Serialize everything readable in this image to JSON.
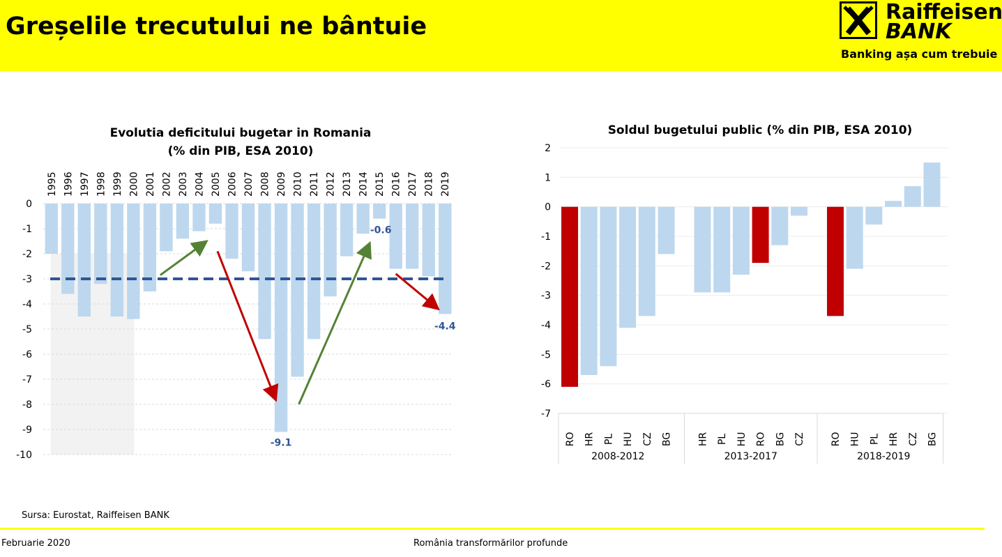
{
  "header": {
    "title": "Greșelile trecutului ne bântuie",
    "logo_line1": "Raiffeisen",
    "logo_line2": "BANK",
    "slogan": "Banking așa cum trebuie"
  },
  "colors": {
    "header_bg": "#ffff00",
    "bar_light": "#bdd7ee",
    "bar_romania": "#c00000",
    "threshold_line": "#2f5597",
    "arrow_up": "#548235",
    "arrow_down": "#c00000",
    "shade": "#f2f2f2"
  },
  "source": "Sursa: Eurostat, Raiffeisen BANK",
  "footer": {
    "left": "Februarie 2020",
    "center": "România transformărilor profunde"
  },
  "chart_data": [
    {
      "type": "bar",
      "title": "Evolutia deficitului bugetar in Romania",
      "subtitle": "(% din PIB, ESA 2010)",
      "categories": [
        "1995",
        "1996",
        "1997",
        "1998",
        "1999",
        "2000",
        "2001",
        "2002",
        "2003",
        "2004",
        "2005",
        "2006",
        "2007",
        "2008",
        "2009",
        "2010",
        "2011",
        "2012",
        "2013",
        "2014",
        "2015",
        "2016",
        "2017",
        "2018",
        "2019"
      ],
      "values": [
        -2.0,
        -3.6,
        -4.5,
        -3.2,
        -4.5,
        -4.6,
        -3.5,
        -1.9,
        -1.4,
        -1.1,
        -0.8,
        -2.2,
        -2.7,
        -5.4,
        -9.1,
        -6.9,
        -5.4,
        -3.7,
        -2.1,
        -1.2,
        -0.6,
        -2.6,
        -2.6,
        -2.9,
        -4.4
      ],
      "ylim": [
        -10,
        0
      ],
      "yticks": [
        0,
        -1,
        -2,
        -3,
        -4,
        -5,
        -6,
        -7,
        -8,
        -9,
        -10
      ],
      "threshold": -3,
      "shaded_years": [
        "1995",
        "2000"
      ],
      "data_labels": [
        {
          "category": "2009",
          "text": "-9.1"
        },
        {
          "category": "2015",
          "text": "-0.6"
        },
        {
          "category": "2019",
          "text": "-4.4"
        }
      ],
      "grid": true
    },
    {
      "type": "bar",
      "title": "Soldul bugetului public (% din PIB, ESA 2010)",
      "ylim": [
        -7,
        2
      ],
      "yticks": [
        2,
        1,
        0,
        -1,
        -2,
        -3,
        -4,
        -5,
        -6,
        -7
      ],
      "grid": true,
      "groups": [
        {
          "label": "2008-2012",
          "categories": [
            "RO",
            "HR",
            "PL",
            "HU",
            "CZ",
            "BG"
          ],
          "values": [
            -6.1,
            -5.7,
            -5.4,
            -4.1,
            -3.7,
            -1.6
          ]
        },
        {
          "label": "2013-2017",
          "categories": [
            "HR",
            "PL",
            "HU",
            "RO",
            "BG",
            "CZ"
          ],
          "values": [
            -2.9,
            -2.9,
            -2.3,
            -1.9,
            -1.3,
            -0.3
          ]
        },
        {
          "label": "2018-2019",
          "categories": [
            "RO",
            "HU",
            "PL",
            "HR",
            "CZ",
            "BG"
          ],
          "values": [
            -3.7,
            -2.1,
            -0.6,
            0.2,
            0.7,
            1.5
          ]
        }
      ],
      "highlight": "RO"
    }
  ]
}
